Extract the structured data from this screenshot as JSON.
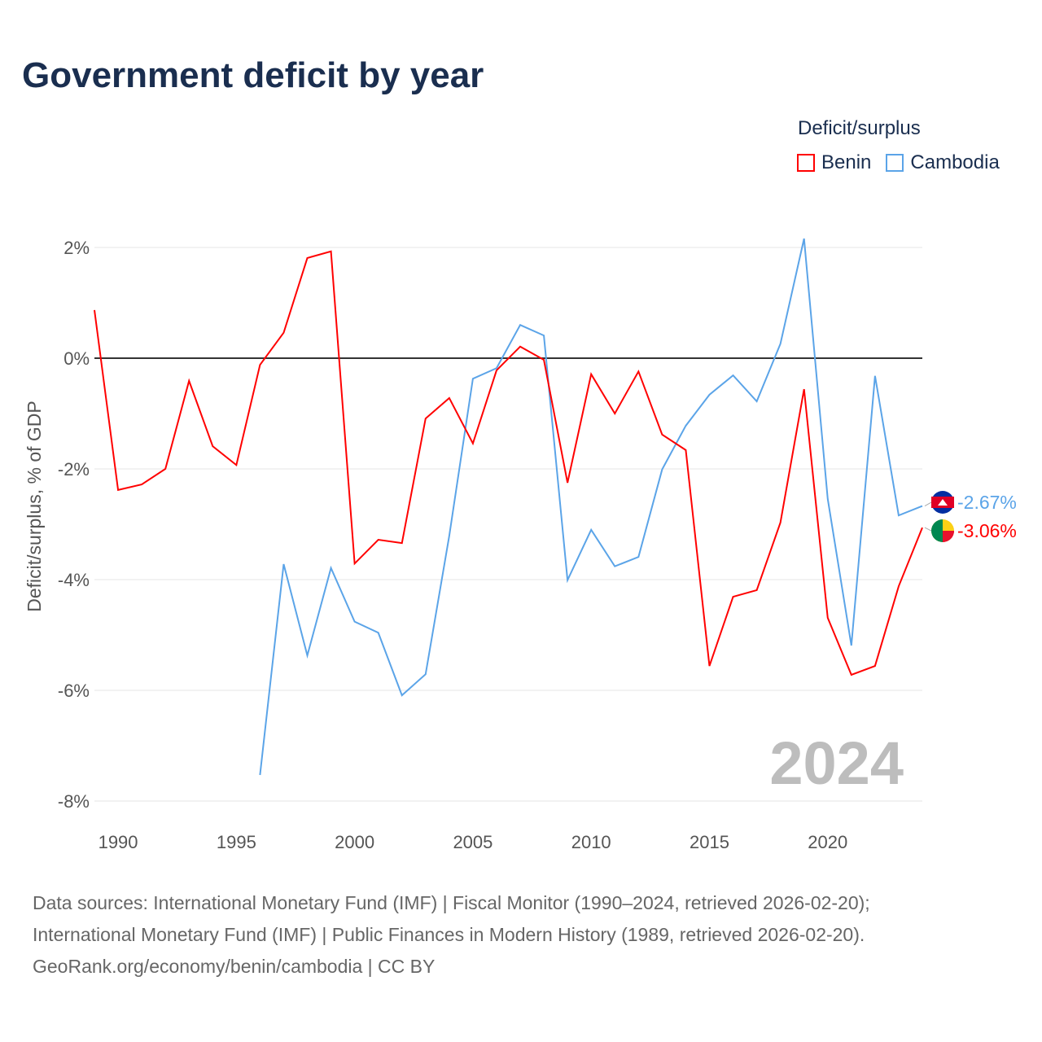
{
  "title": "Government deficit by year",
  "legend": {
    "title": "Deficit/surplus",
    "items": [
      {
        "name": "Benin",
        "color": "#ff0000"
      },
      {
        "name": "Cambodia",
        "color": "#5ba4e8"
      }
    ]
  },
  "year_label": "2024",
  "source": [
    "Data sources: International Monetary Fund (IMF) | Fiscal Monitor (1990–2024, retrieved 2026-02-20);",
    "International Monetary Fund (IMF) | Public Finances in Modern History (1989, retrieved 2026-02-20).",
    "GeoRank.org/economy/benin/cambodia | CC BY"
  ],
  "chart_data": {
    "type": "line",
    "title": "Government deficit by year",
    "xlabel": "",
    "ylabel": "Deficit/surplus, % of GDP",
    "xlim": [
      1989,
      2024
    ],
    "ylim": [
      -8.3,
      2.6
    ],
    "xticks": [
      1990,
      1995,
      2000,
      2005,
      2010,
      2015,
      2020
    ],
    "yticks": [
      {
        "v": 2,
        "label": "2%"
      },
      {
        "v": 0,
        "label": "0%"
      },
      {
        "v": -2,
        "label": "-2%"
      },
      {
        "v": -4,
        "label": "-4%"
      },
      {
        "v": -6,
        "label": "-6%"
      },
      {
        "v": -8,
        "label": "-8%"
      }
    ],
    "series": [
      {
        "name": "Benin",
        "color": "#ff0000",
        "end_label": "-3.06%",
        "x": [
          1989,
          1990,
          1991,
          1992,
          1993,
          1994,
          1995,
          1996,
          1997,
          1998,
          1999,
          2000,
          2001,
          2002,
          2003,
          2004,
          2005,
          2006,
          2007,
          2008,
          2009,
          2010,
          2011,
          2012,
          2013,
          2014,
          2015,
          2016,
          2017,
          2018,
          2019,
          2020,
          2021,
          2022,
          2023,
          2024
        ],
        "values": [
          0.87,
          -2.38,
          -2.28,
          -2.0,
          -0.41,
          -1.59,
          -1.93,
          -0.12,
          0.46,
          1.81,
          1.93,
          -3.71,
          -3.28,
          -3.34,
          -1.09,
          -0.72,
          -1.54,
          -0.22,
          0.21,
          -0.03,
          -2.25,
          -0.29,
          -1.0,
          -0.24,
          -1.38,
          -1.66,
          -5.56,
          -4.31,
          -4.19,
          -2.97,
          -0.56,
          -4.69,
          -5.72,
          -5.56,
          -4.12,
          -3.06
        ]
      },
      {
        "name": "Cambodia",
        "color": "#5ba4e8",
        "end_label": "-2.67%",
        "x": [
          1996,
          1997,
          1998,
          1999,
          2000,
          2001,
          2002,
          2003,
          2004,
          2005,
          2006,
          2007,
          2008,
          2009,
          2010,
          2011,
          2012,
          2013,
          2014,
          2015,
          2016,
          2017,
          2018,
          2019,
          2020,
          2021,
          2022,
          2023,
          2024
        ],
        "values": [
          -7.53,
          -3.72,
          -5.37,
          -3.79,
          -4.76,
          -4.96,
          -6.09,
          -5.71,
          -3.21,
          -0.37,
          -0.18,
          0.6,
          0.41,
          -4.01,
          -3.1,
          -3.76,
          -3.59,
          -2.01,
          -1.22,
          -0.66,
          -0.31,
          -0.78,
          0.26,
          2.16,
          -2.54,
          -5.19,
          -0.32,
          -2.84,
          -2.67
        ]
      }
    ]
  }
}
